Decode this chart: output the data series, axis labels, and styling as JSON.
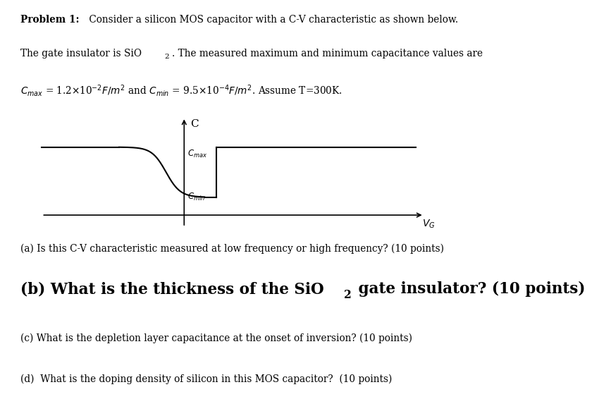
{
  "bg_color": "#ffffff",
  "text_color": "#000000",
  "header_line1_bold": "Problem 1:",
  "header_line1_rest": " Consider a silicon MOS capacitor with a C-V characteristic as shown below.",
  "header_line2": "The gate insulator is SiO",
  "header_line2_sub": "2",
  "header_line2_rest": ". The measured maximum and minimum capacitance values are",
  "header_line3": "$C_{max}$ = 1.2×10$^{-2}$$F/m^2$ and $C_{min}$ = 9.5×10$^{-4}$$F/m^2$. Assume T=300K.",
  "qa": "(a) Is this C-V characteristic measured at low frequency or high frequency? (10 points)",
  "qb_pre": "(b) What is the thickness of the SiO",
  "qb_sub": "2",
  "qb_post": " gate insulator? (10 points)",
  "qc": "(c) What is the depletion layer capacitance at the onset of inversion? (10 points)",
  "qd": "(d)  What is the doping density of silicon in this MOS capacitor?  (10 points)",
  "cmax_y": 7.2,
  "cmin_y": 3.0,
  "yaxis_x": 3.8,
  "xaxis_y": 1.5,
  "curve_left_x": 0.3,
  "curve_flat_end_x": 2.2,
  "curve_desc_end_x": 4.1,
  "curve_jump_x": 4.6,
  "curve_right_end_x": 9.5,
  "xlim": [
    0,
    10
  ],
  "ylim": [
    0,
    10
  ]
}
